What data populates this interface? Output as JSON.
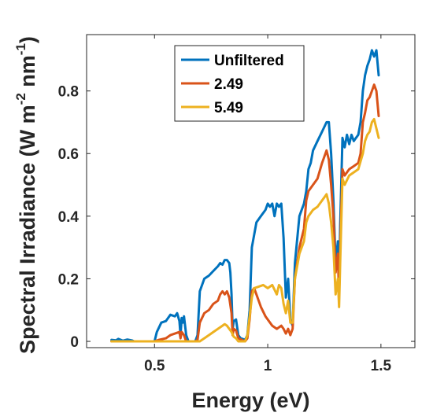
{
  "chart_data": {
    "type": "line",
    "title": "",
    "xlabel": "Energy (eV)",
    "ylabel": {
      "main": "Spectral Irradiance (W m",
      "sup1": "-2",
      "mid": " nm",
      "sup2": "-1",
      "end": ")"
    },
    "xlim": [
      0.2,
      1.65
    ],
    "ylim": [
      -0.02,
      0.98
    ],
    "xticks": [
      0.5,
      1,
      1.5
    ],
    "xtick_labels": [
      "0.5",
      "1",
      "1.5"
    ],
    "yticks": [
      0,
      0.2,
      0.4,
      0.6,
      0.8
    ],
    "ytick_labels": [
      "0",
      "0.2",
      "0.4",
      "0.6",
      "0.8"
    ],
    "grid": false,
    "legend_position": "top-center",
    "series": [
      {
        "name": "Unfiltered",
        "color": "#0072BD",
        "points": [
          [
            0.31,
            0.005
          ],
          [
            0.33,
            0.003
          ],
          [
            0.34,
            0.008
          ],
          [
            0.36,
            0.002
          ],
          [
            0.38,
            0.006
          ],
          [
            0.4,
            0.003
          ],
          [
            0.41,
            0.0
          ],
          [
            0.44,
            0.0
          ],
          [
            0.48,
            0.0
          ],
          [
            0.5,
            0.0
          ],
          [
            0.51,
            0.03
          ],
          [
            0.53,
            0.06
          ],
          [
            0.55,
            0.065
          ],
          [
            0.57,
            0.085
          ],
          [
            0.59,
            0.08
          ],
          [
            0.6,
            0.09
          ],
          [
            0.61,
            0.065
          ],
          [
            0.615,
            0.02
          ],
          [
            0.62,
            0.075
          ],
          [
            0.625,
            0.06
          ],
          [
            0.63,
            0.08
          ],
          [
            0.635,
            0.05
          ],
          [
            0.64,
            0.02
          ],
          [
            0.65,
            0.0
          ],
          [
            0.68,
            0.0
          ],
          [
            0.69,
            0.02
          ],
          [
            0.7,
            0.16
          ],
          [
            0.72,
            0.2
          ],
          [
            0.74,
            0.21
          ],
          [
            0.76,
            0.225
          ],
          [
            0.78,
            0.24
          ],
          [
            0.79,
            0.25
          ],
          [
            0.8,
            0.245
          ],
          [
            0.81,
            0.26
          ],
          [
            0.82,
            0.26
          ],
          [
            0.83,
            0.25
          ],
          [
            0.835,
            0.22
          ],
          [
            0.84,
            0.15
          ],
          [
            0.845,
            0.04
          ],
          [
            0.85,
            0.065
          ],
          [
            0.86,
            0.07
          ],
          [
            0.87,
            0.02
          ],
          [
            0.88,
            0.01
          ],
          [
            0.9,
            0.005
          ],
          [
            0.91,
            0.02
          ],
          [
            0.92,
            0.1
          ],
          [
            0.93,
            0.3
          ],
          [
            0.95,
            0.38
          ],
          [
            0.97,
            0.4
          ],
          [
            0.99,
            0.42
          ],
          [
            1.0,
            0.44
          ],
          [
            1.01,
            0.43
          ],
          [
            1.02,
            0.44
          ],
          [
            1.03,
            0.4
          ],
          [
            1.04,
            0.44
          ],
          [
            1.05,
            0.43
          ],
          [
            1.06,
            0.44
          ],
          [
            1.07,
            0.33
          ],
          [
            1.08,
            0.14
          ],
          [
            1.09,
            0.2
          ],
          [
            1.1,
            0.07
          ],
          [
            1.11,
            0.05
          ],
          [
            1.12,
            0.25
          ],
          [
            1.14,
            0.4
          ],
          [
            1.16,
            0.44
          ],
          [
            1.17,
            0.48
          ],
          [
            1.18,
            0.55
          ],
          [
            1.19,
            0.57
          ],
          [
            1.2,
            0.61
          ],
          [
            1.22,
            0.64
          ],
          [
            1.24,
            0.67
          ],
          [
            1.26,
            0.7
          ],
          [
            1.27,
            0.7
          ],
          [
            1.28,
            0.6
          ],
          [
            1.29,
            0.45
          ],
          [
            1.3,
            0.25
          ],
          [
            1.31,
            0.32
          ],
          [
            1.315,
            0.17
          ],
          [
            1.32,
            0.37
          ],
          [
            1.33,
            0.65
          ],
          [
            1.34,
            0.62
          ],
          [
            1.35,
            0.66
          ],
          [
            1.36,
            0.63
          ],
          [
            1.37,
            0.66
          ],
          [
            1.38,
            0.64
          ],
          [
            1.39,
            0.65
          ],
          [
            1.4,
            0.66
          ],
          [
            1.41,
            0.7
          ],
          [
            1.42,
            0.8
          ],
          [
            1.43,
            0.85
          ],
          [
            1.44,
            0.88
          ],
          [
            1.45,
            0.9
          ],
          [
            1.46,
            0.93
          ],
          [
            1.47,
            0.91
          ],
          [
            1.48,
            0.93
          ],
          [
            1.49,
            0.85
          ]
        ]
      },
      {
        "name": "2.49",
        "color": "#D95319",
        "points": [
          [
            0.31,
            0.0
          ],
          [
            0.4,
            0.0
          ],
          [
            0.5,
            0.0
          ],
          [
            0.52,
            0.005
          ],
          [
            0.55,
            0.01
          ],
          [
            0.57,
            0.02
          ],
          [
            0.59,
            0.025
          ],
          [
            0.61,
            0.03
          ],
          [
            0.615,
            0.01
          ],
          [
            0.62,
            0.03
          ],
          [
            0.63,
            0.02
          ],
          [
            0.64,
            0.0
          ],
          [
            0.68,
            0.0
          ],
          [
            0.69,
            0.005
          ],
          [
            0.7,
            0.06
          ],
          [
            0.72,
            0.09
          ],
          [
            0.74,
            0.1
          ],
          [
            0.76,
            0.12
          ],
          [
            0.78,
            0.13
          ],
          [
            0.79,
            0.15
          ],
          [
            0.8,
            0.16
          ],
          [
            0.81,
            0.15
          ],
          [
            0.82,
            0.16
          ],
          [
            0.83,
            0.14
          ],
          [
            0.84,
            0.09
          ],
          [
            0.845,
            0.02
          ],
          [
            0.85,
            0.04
          ],
          [
            0.86,
            0.035
          ],
          [
            0.87,
            0.01
          ],
          [
            0.9,
            0.0
          ],
          [
            0.91,
            0.01
          ],
          [
            0.92,
            0.07
          ],
          [
            0.93,
            0.16
          ],
          [
            0.94,
            0.17
          ],
          [
            0.95,
            0.15
          ],
          [
            0.97,
            0.11
          ],
          [
            0.99,
            0.08
          ],
          [
            1.0,
            0.07
          ],
          [
            1.02,
            0.05
          ],
          [
            1.04,
            0.04
          ],
          [
            1.06,
            0.05
          ],
          [
            1.07,
            0.04
          ],
          [
            1.08,
            0.025
          ],
          [
            1.09,
            0.04
          ],
          [
            1.1,
            0.02
          ],
          [
            1.11,
            0.04
          ],
          [
            1.12,
            0.2
          ],
          [
            1.14,
            0.3
          ],
          [
            1.16,
            0.36
          ],
          [
            1.17,
            0.45
          ],
          [
            1.18,
            0.48
          ],
          [
            1.2,
            0.5
          ],
          [
            1.22,
            0.52
          ],
          [
            1.24,
            0.57
          ],
          [
            1.26,
            0.61
          ],
          [
            1.27,
            0.58
          ],
          [
            1.28,
            0.5
          ],
          [
            1.29,
            0.4
          ],
          [
            1.3,
            0.22
          ],
          [
            1.31,
            0.28
          ],
          [
            1.315,
            0.14
          ],
          [
            1.32,
            0.3
          ],
          [
            1.33,
            0.55
          ],
          [
            1.34,
            0.53
          ],
          [
            1.36,
            0.55
          ],
          [
            1.38,
            0.56
          ],
          [
            1.4,
            0.57
          ],
          [
            1.41,
            0.6
          ],
          [
            1.42,
            0.7
          ],
          [
            1.43,
            0.73
          ],
          [
            1.44,
            0.77
          ],
          [
            1.45,
            0.78
          ],
          [
            1.46,
            0.8
          ],
          [
            1.47,
            0.82
          ],
          [
            1.48,
            0.8
          ],
          [
            1.49,
            0.72
          ]
        ]
      },
      {
        "name": "5.49",
        "color": "#EDB120",
        "points": [
          [
            0.31,
            0.0
          ],
          [
            0.5,
            0.0
          ],
          [
            0.6,
            0.0
          ],
          [
            0.7,
            0.0
          ],
          [
            0.72,
            0.01
          ],
          [
            0.74,
            0.02
          ],
          [
            0.76,
            0.03
          ],
          [
            0.78,
            0.04
          ],
          [
            0.8,
            0.05
          ],
          [
            0.81,
            0.055
          ],
          [
            0.82,
            0.05
          ],
          [
            0.83,
            0.04
          ],
          [
            0.84,
            0.03
          ],
          [
            0.85,
            0.015
          ],
          [
            0.86,
            0.01
          ],
          [
            0.87,
            0.0
          ],
          [
            0.9,
            0.0
          ],
          [
            0.91,
            0.02
          ],
          [
            0.92,
            0.08
          ],
          [
            0.93,
            0.14
          ],
          [
            0.94,
            0.17
          ],
          [
            0.96,
            0.175
          ],
          [
            0.98,
            0.18
          ],
          [
            1.0,
            0.17
          ],
          [
            1.02,
            0.18
          ],
          [
            1.04,
            0.15
          ],
          [
            1.05,
            0.18
          ],
          [
            1.06,
            0.17
          ],
          [
            1.07,
            0.12
          ],
          [
            1.08,
            0.09
          ],
          [
            1.09,
            0.13
          ],
          [
            1.1,
            0.06
          ],
          [
            1.11,
            0.06
          ],
          [
            1.12,
            0.2
          ],
          [
            1.14,
            0.28
          ],
          [
            1.16,
            0.32
          ],
          [
            1.17,
            0.38
          ],
          [
            1.18,
            0.4
          ],
          [
            1.2,
            0.42
          ],
          [
            1.22,
            0.43
          ],
          [
            1.24,
            0.45
          ],
          [
            1.26,
            0.47
          ],
          [
            1.27,
            0.44
          ],
          [
            1.28,
            0.38
          ],
          [
            1.29,
            0.3
          ],
          [
            1.3,
            0.15
          ],
          [
            1.31,
            0.2
          ],
          [
            1.315,
            0.11
          ],
          [
            1.32,
            0.25
          ],
          [
            1.33,
            0.52
          ],
          [
            1.34,
            0.5
          ],
          [
            1.36,
            0.53
          ],
          [
            1.38,
            0.54
          ],
          [
            1.4,
            0.55
          ],
          [
            1.42,
            0.6
          ],
          [
            1.43,
            0.64
          ],
          [
            1.44,
            0.66
          ],
          [
            1.45,
            0.67
          ],
          [
            1.46,
            0.7
          ],
          [
            1.47,
            0.71
          ],
          [
            1.48,
            0.68
          ],
          [
            1.49,
            0.65
          ]
        ]
      }
    ]
  }
}
